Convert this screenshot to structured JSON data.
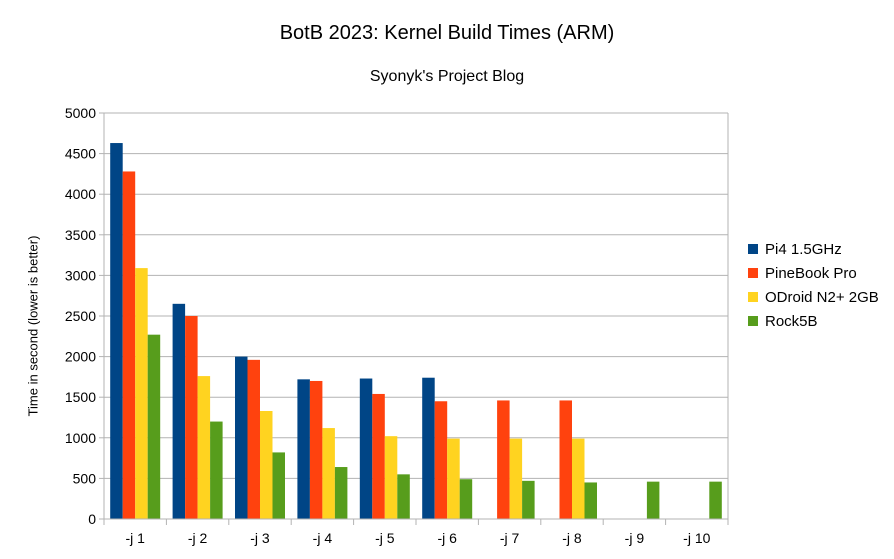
{
  "chart_data": {
    "type": "bar",
    "title": "BotB 2023: Kernel Build Times (ARM)",
    "subtitle": "Syonyk's Project Blog",
    "xlabel": "",
    "ylabel": "Time in second (lower is better)",
    "ylim": [
      0,
      5000
    ],
    "yticks": [
      0,
      500,
      1000,
      1500,
      2000,
      2500,
      3000,
      3500,
      4000,
      4500,
      5000
    ],
    "grid": true,
    "legend_position": "right",
    "categories": [
      "-j 1",
      "-j 2",
      "-j 3",
      "-j 4",
      "-j 5",
      "-j 6",
      "-j 7",
      "-j 8",
      "-j 9",
      "-j 10"
    ],
    "series": [
      {
        "name": "Pi4 1.5GHz",
        "color": "#004586",
        "values": [
          4630,
          2650,
          2000,
          1720,
          1730,
          1740,
          null,
          null,
          null,
          null
        ]
      },
      {
        "name": "PineBook Pro",
        "color": "#ff420e",
        "values": [
          4280,
          2500,
          1960,
          1700,
          1540,
          1450,
          1460,
          1460,
          null,
          null
        ]
      },
      {
        "name": "ODroid N2+ 2GB",
        "color": "#ffd320",
        "values": [
          3090,
          1760,
          1330,
          1120,
          1020,
          990,
          990,
          990,
          null,
          null
        ]
      },
      {
        "name": "Rock5B",
        "color": "#579d1c",
        "values": [
          2270,
          1200,
          820,
          640,
          550,
          490,
          470,
          450,
          460,
          460
        ]
      }
    ]
  }
}
